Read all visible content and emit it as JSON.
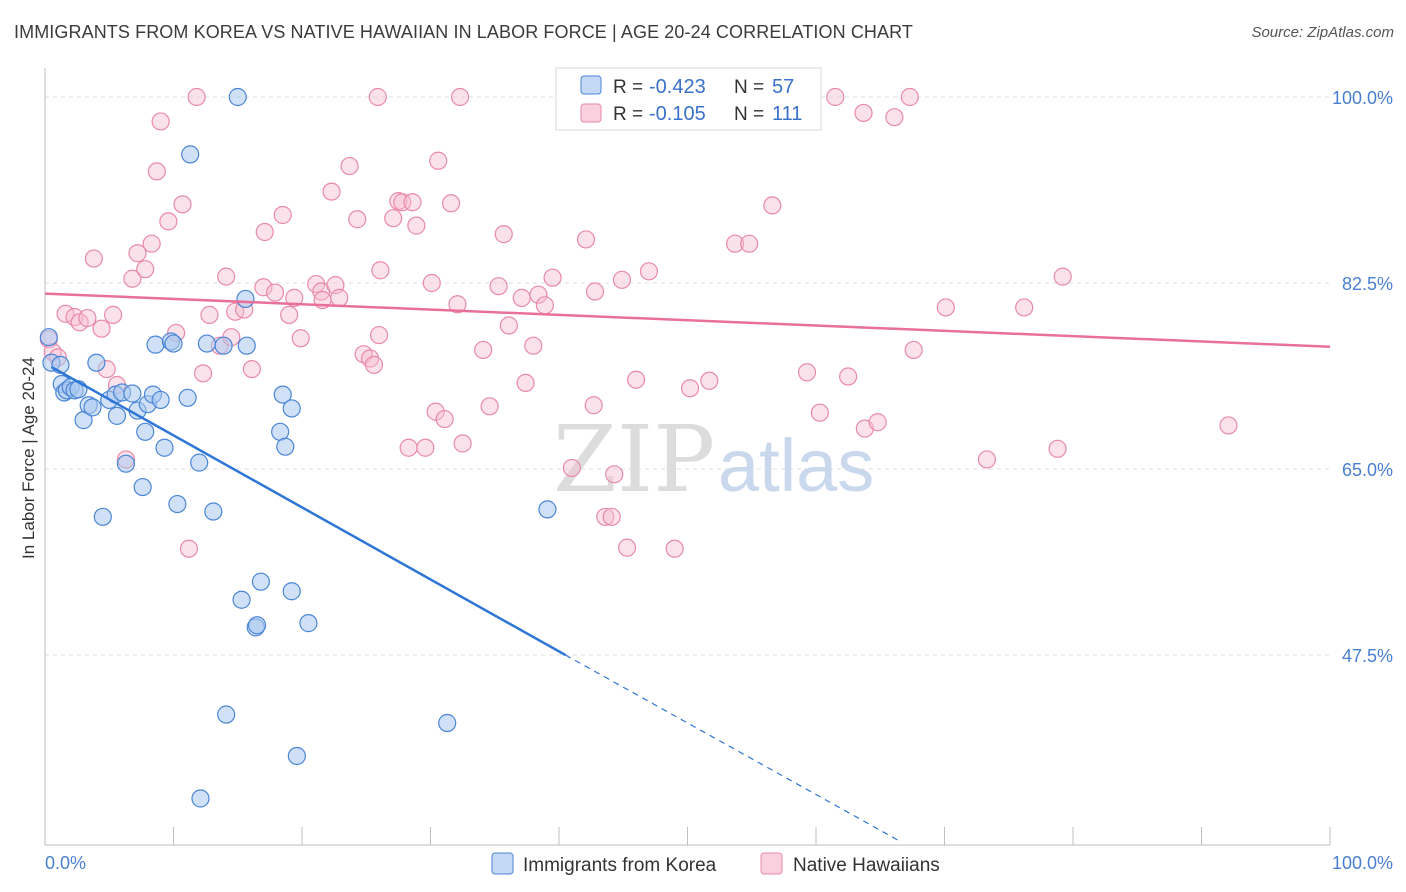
{
  "header": {
    "title": "IMMIGRANTS FROM KOREA VS NATIVE HAWAIIAN IN LABOR FORCE | AGE 20-24 CORRELATION CHART",
    "source": "Source: ZipAtlas.com"
  },
  "watermark": {
    "zip": "ZIP",
    "atlas": "atlas"
  },
  "colors": {
    "korea_fill": "#a9c8f0",
    "korea_stroke": "#4b86d6",
    "korea_line": "#2f76d6",
    "hawaiian_fill": "#f7bcd0",
    "hawaiian_stroke": "#e88aab",
    "hawaiian_line": "#e8709a",
    "tick_text": "#4a7fd1",
    "grid": "#dcdcdc"
  },
  "legend": {
    "rows": [
      {
        "r_label": "R =",
        "r_value": "-0.423",
        "n_label": "N =",
        "n_value": "57"
      },
      {
        "r_label": "R =",
        "r_value": "-0.105",
        "n_label": "N =",
        "n_value": "111"
      }
    ]
  },
  "chart_data": {
    "type": "scatter",
    "title": "IMMIGRANTS FROM KOREA VS NATIVE HAWAIIAN IN LABOR FORCE | AGE 20-24 CORRELATION CHART",
    "xlabel": "",
    "ylabel": "In Labor Force | Age 20-24",
    "xlim": [
      0,
      100
    ],
    "ylim": [
      31.5,
      101
    ],
    "x_tick_labels": [
      "0.0%",
      "100.0%"
    ],
    "y_ticks": [
      47.5,
      65.0,
      82.5,
      100.0
    ],
    "y_tick_labels": [
      "47.5%",
      "65.0%",
      "82.5%",
      "100.0%"
    ],
    "grid": true,
    "legend_position": "top-center",
    "series": [
      {
        "name": "Immigrants from Korea",
        "r": -0.423,
        "n": 57,
        "trend": {
          "x0": 0.5,
          "y0": 74.6,
          "x1": 40.5,
          "y1": 47.5,
          "dashed_to_x": 66.5,
          "dashed_to_y": 30.0
        },
        "points": [
          [
            0.3,
            77.4
          ],
          [
            0.5,
            75.0
          ],
          [
            1.2,
            74.8
          ],
          [
            1.3,
            73.0
          ],
          [
            1.5,
            72.2
          ],
          [
            1.7,
            72.4
          ],
          [
            2.0,
            72.7
          ],
          [
            2.3,
            72.4
          ],
          [
            2.6,
            72.5
          ],
          [
            3.0,
            69.6
          ],
          [
            3.4,
            71.0
          ],
          [
            3.7,
            70.8
          ],
          [
            4.0,
            75.0
          ],
          [
            4.5,
            60.5
          ],
          [
            5.0,
            71.5
          ],
          [
            5.5,
            72.0
          ],
          [
            5.6,
            70.0
          ],
          [
            6.0,
            72.2
          ],
          [
            6.3,
            65.5
          ],
          [
            6.8,
            72.1
          ],
          [
            7.2,
            70.5
          ],
          [
            7.6,
            63.3
          ],
          [
            7.8,
            68.5
          ],
          [
            8.0,
            71.1
          ],
          [
            8.4,
            72.0
          ],
          [
            8.6,
            76.7
          ],
          [
            9.0,
            71.5
          ],
          [
            9.3,
            67.0
          ],
          [
            9.8,
            77.0
          ],
          [
            10.0,
            76.8
          ],
          [
            10.3,
            61.7
          ],
          [
            11.1,
            71.7
          ],
          [
            11.3,
            94.6
          ],
          [
            12.0,
            65.6
          ],
          [
            12.1,
            34.0
          ],
          [
            12.6,
            76.8
          ],
          [
            13.1,
            61.0
          ],
          [
            13.9,
            76.6
          ],
          [
            14.1,
            41.9
          ],
          [
            15.0,
            100.0
          ],
          [
            15.3,
            52.7
          ],
          [
            15.6,
            81.0
          ],
          [
            15.7,
            76.6
          ],
          [
            16.4,
            50.1
          ],
          [
            16.5,
            50.3
          ],
          [
            16.8,
            54.4
          ],
          [
            18.3,
            68.5
          ],
          [
            18.5,
            72.0
          ],
          [
            18.7,
            67.1
          ],
          [
            19.2,
            70.7
          ],
          [
            19.2,
            53.5
          ],
          [
            19.6,
            38.0
          ],
          [
            20.5,
            50.5
          ],
          [
            31.3,
            41.1
          ],
          [
            39.1,
            61.2
          ]
        ]
      },
      {
        "name": "Native Hawaiians",
        "r": -0.105,
        "n": 111,
        "trend": {
          "x0": 0,
          "y0": 81.5,
          "x1": 100,
          "y1": 76.5
        },
        "points": [
          [
            0.3,
            77.2
          ],
          [
            0.6,
            76.0
          ],
          [
            1.0,
            75.5
          ],
          [
            1.6,
            79.6
          ],
          [
            2.3,
            79.3
          ],
          [
            2.7,
            78.8
          ],
          [
            3.3,
            79.2
          ],
          [
            3.8,
            84.8
          ],
          [
            4.4,
            78.2
          ],
          [
            4.8,
            74.4
          ],
          [
            5.3,
            79.5
          ],
          [
            5.6,
            72.9
          ],
          [
            6.3,
            65.9
          ],
          [
            6.8,
            82.9
          ],
          [
            7.2,
            85.3
          ],
          [
            7.8,
            83.8
          ],
          [
            8.3,
            86.2
          ],
          [
            8.7,
            93.0
          ],
          [
            9.0,
            97.7
          ],
          [
            9.6,
            88.3
          ],
          [
            10.2,
            77.8
          ],
          [
            10.7,
            89.9
          ],
          [
            11.2,
            57.5
          ],
          [
            11.8,
            100.0
          ],
          [
            12.3,
            74.0
          ],
          [
            12.8,
            79.5
          ],
          [
            13.6,
            76.6
          ],
          [
            14.1,
            83.1
          ],
          [
            14.5,
            77.4
          ],
          [
            14.8,
            79.8
          ],
          [
            15.5,
            80.0
          ],
          [
            16.1,
            74.4
          ],
          [
            17.0,
            82.1
          ],
          [
            17.1,
            87.3
          ],
          [
            17.9,
            81.6
          ],
          [
            18.5,
            88.9
          ],
          [
            19.0,
            79.5
          ],
          [
            19.4,
            81.1
          ],
          [
            19.9,
            77.3
          ],
          [
            21.1,
            82.4
          ],
          [
            21.5,
            81.7
          ],
          [
            21.6,
            80.9
          ],
          [
            22.3,
            91.1
          ],
          [
            22.6,
            82.3
          ],
          [
            22.9,
            81.1
          ],
          [
            23.7,
            93.5
          ],
          [
            24.3,
            88.5
          ],
          [
            24.8,
            75.8
          ],
          [
            25.3,
            75.4
          ],
          [
            25.6,
            74.8
          ],
          [
            26.1,
            83.7
          ],
          [
            25.9,
            100.0
          ],
          [
            26.0,
            77.6
          ],
          [
            27.1,
            88.6
          ],
          [
            27.5,
            90.2
          ],
          [
            27.8,
            90.1
          ],
          [
            28.3,
            67.0
          ],
          [
            28.9,
            87.9
          ],
          [
            28.6,
            90.1
          ],
          [
            29.6,
            67.0
          ],
          [
            30.1,
            82.5
          ],
          [
            30.4,
            70.4
          ],
          [
            30.6,
            94.0
          ],
          [
            31.1,
            69.7
          ],
          [
            31.6,
            90.0
          ],
          [
            32.1,
            80.5
          ],
          [
            32.3,
            100.0
          ],
          [
            32.5,
            67.4
          ],
          [
            34.1,
            76.2
          ],
          [
            34.6,
            70.9
          ],
          [
            35.3,
            82.2
          ],
          [
            35.7,
            87.1
          ],
          [
            36.1,
            78.5
          ],
          [
            37.1,
            81.1
          ],
          [
            37.4,
            73.1
          ],
          [
            38.0,
            76.6
          ],
          [
            38.4,
            81.4
          ],
          [
            38.9,
            80.4
          ],
          [
            39.5,
            83.0
          ],
          [
            41.0,
            65.1
          ],
          [
            42.1,
            86.6
          ],
          [
            42.8,
            81.7
          ],
          [
            42.7,
            71.0
          ],
          [
            43.6,
            60.5
          ],
          [
            44.1,
            60.5
          ],
          [
            44.3,
            64.5
          ],
          [
            44.9,
            82.8
          ],
          [
            45.3,
            57.6
          ],
          [
            46.0,
            73.4
          ],
          [
            47.0,
            83.6
          ],
          [
            49.0,
            57.5
          ],
          [
            50.2,
            72.6
          ],
          [
            51.7,
            73.3
          ],
          [
            53.7,
            86.2
          ],
          [
            54.8,
            86.2
          ],
          [
            56.6,
            89.8
          ],
          [
            59.3,
            74.1
          ],
          [
            60.3,
            70.3
          ],
          [
            61.5,
            100.0
          ],
          [
            62.5,
            73.7
          ],
          [
            63.7,
            98.5
          ],
          [
            63.8,
            68.8
          ],
          [
            64.8,
            69.4
          ],
          [
            66.1,
            98.1
          ],
          [
            67.3,
            100.0
          ],
          [
            67.6,
            76.2
          ],
          [
            70.1,
            80.2
          ],
          [
            73.3,
            65.9
          ],
          [
            76.2,
            80.2
          ],
          [
            78.8,
            66.9
          ],
          [
            79.2,
            83.1
          ],
          [
            92.1,
            69.1
          ]
        ]
      }
    ]
  },
  "bottom_legend": {
    "korea": "Immigrants from Korea",
    "hawaiian": "Native Hawaiians"
  }
}
